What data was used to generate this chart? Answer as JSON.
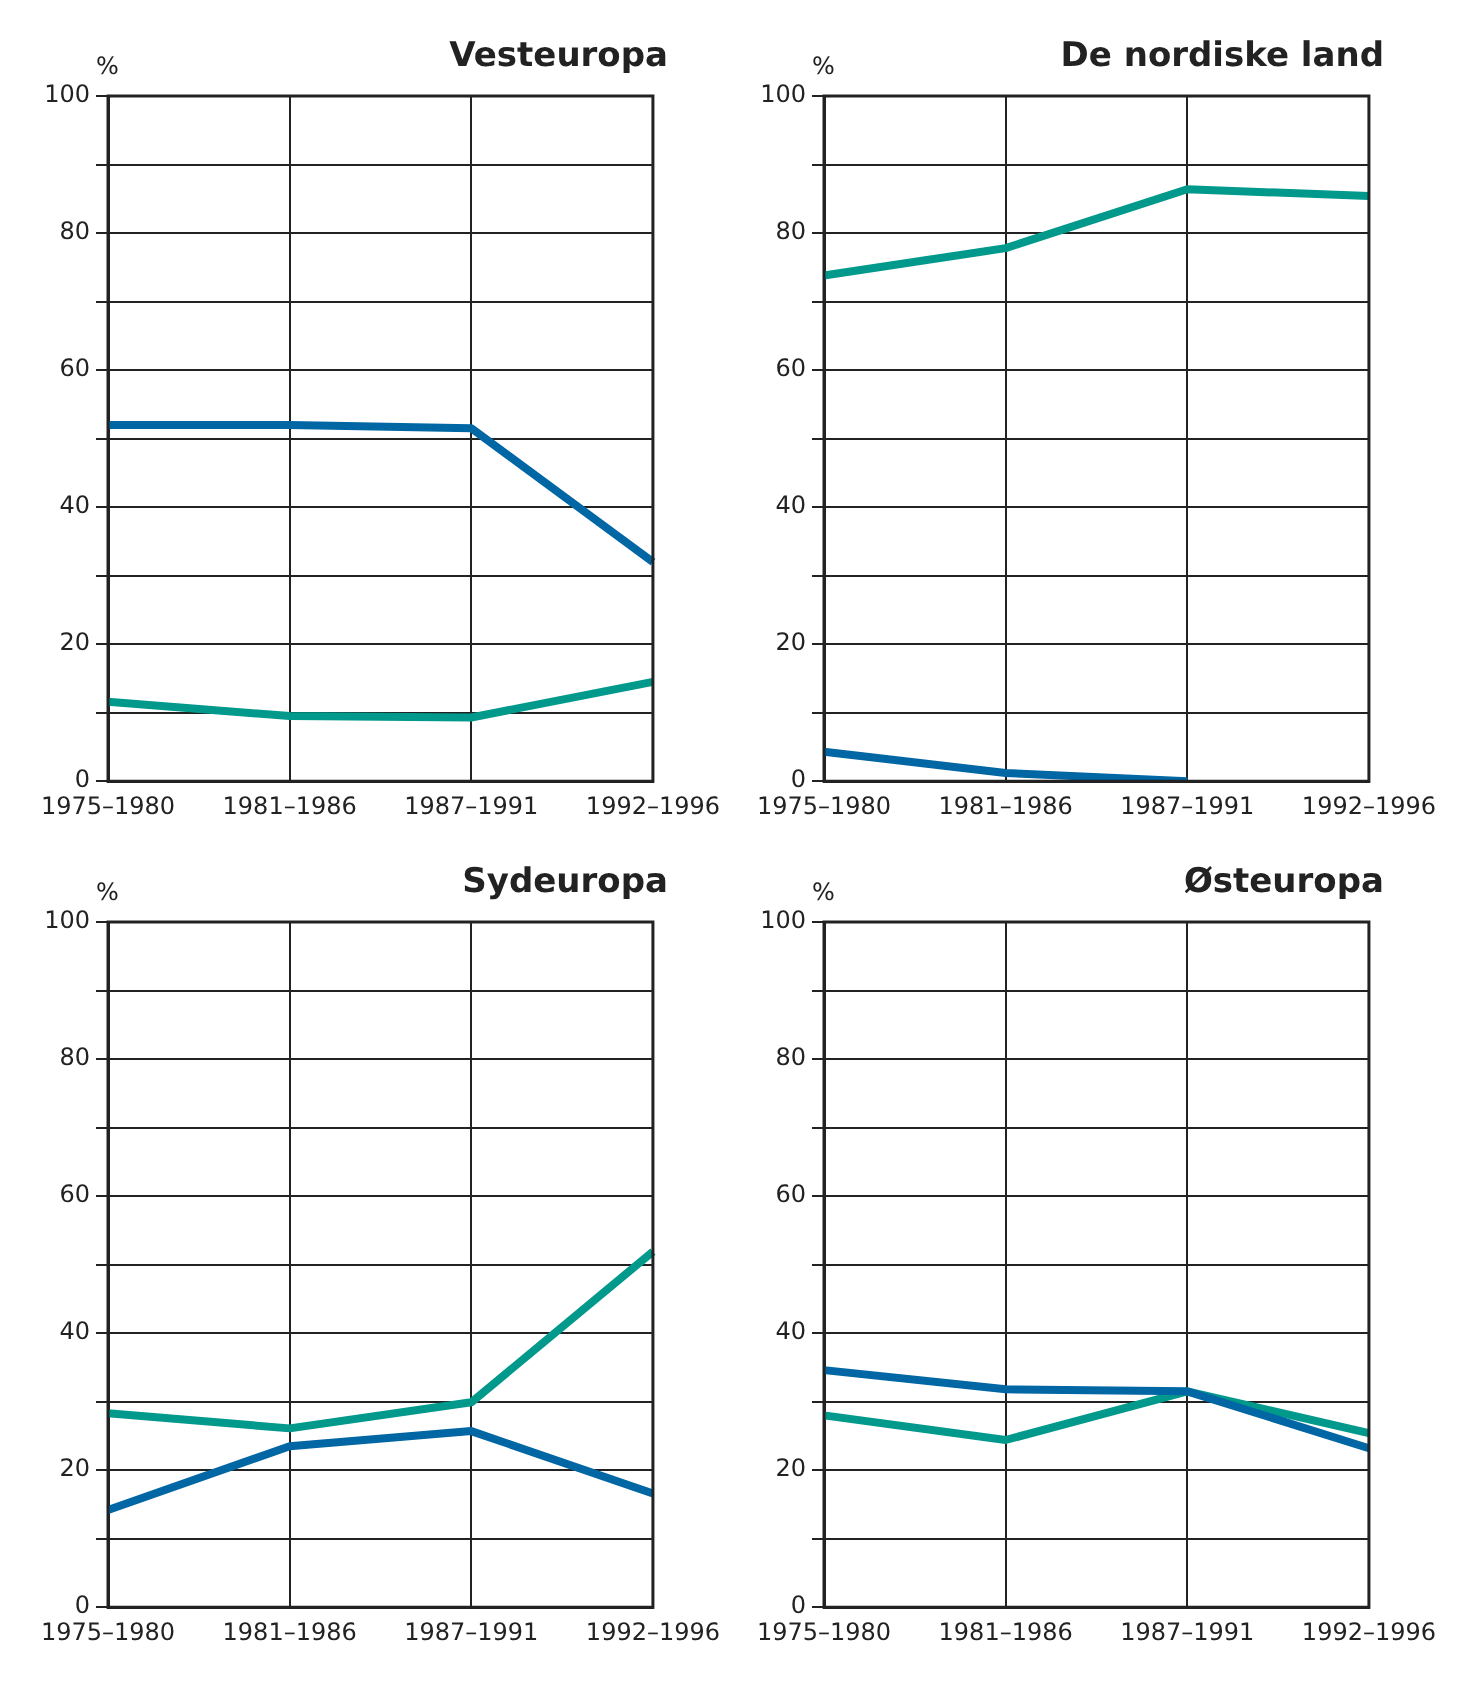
{
  "chart_data": [
    {
      "type": "line",
      "title": "Vesteuropa",
      "ylabel": "%",
      "categories": [
        "1975–1980",
        "1981–1986",
        "1987–1991",
        "1992–1996"
      ],
      "ylim": [
        0,
        100
      ],
      "yticks": [
        0,
        {
          "value": 10,
          "label": null
        },
        20,
        {
          "value": 30,
          "label": null
        },
        40,
        {
          "value": 50,
          "label": null
        },
        60,
        {
          "value": 70,
          "label": null
        },
        80,
        {
          "value": 90,
          "label": null
        },
        100
      ],
      "grid": true,
      "marker": "none",
      "series": [
        {
          "color": "#0066a4",
          "values": [
            52.0,
            52.0,
            51.5,
            32.0
          ]
        },
        {
          "color": "#00998b",
          "values": [
            11.6,
            9.5,
            9.3,
            14.5
          ]
        }
      ]
    },
    {
      "type": "line",
      "title": "De nordiske land",
      "ylabel": "%",
      "categories": [
        "1975–1980",
        "1981–1986",
        "1987–1991",
        "1992–1996"
      ],
      "ylim": [
        0,
        100
      ],
      "yticks": [
        0,
        {
          "value": 10,
          "label": null
        },
        20,
        {
          "value": 30,
          "label": null
        },
        40,
        {
          "value": 50,
          "label": null
        },
        60,
        {
          "value": 70,
          "label": null
        },
        80,
        {
          "value": 90,
          "label": null
        },
        100
      ],
      "grid": true,
      "marker": "none",
      "series": [
        {
          "color": "#0066a4",
          "values": [
            4.3,
            1.2,
            0,
            null
          ]
        },
        {
          "color": "#00998b",
          "values": [
            73.8,
            77.8,
            86.4,
            85.4
          ]
        }
      ]
    },
    {
      "type": "line",
      "title": "Sydeuropa",
      "ylabel": "%",
      "categories": [
        "1975–1980",
        "1981–1986",
        "1987–1991",
        "1992–1996"
      ],
      "ylim": [
        0,
        100
      ],
      "yticks": [
        0,
        {
          "value": 10,
          "label": null
        },
        20,
        {
          "value": 30,
          "label": null
        },
        40,
        {
          "value": 50,
          "label": null
        },
        60,
        {
          "value": 70,
          "label": null
        },
        80,
        {
          "value": 90,
          "label": null
        },
        100
      ],
      "grid": true,
      "marker": "none",
      "series": [
        {
          "color": "#0066a4",
          "values": [
            14.2,
            23.5,
            25.7,
            16.6
          ]
        },
        {
          "color": "#00998b",
          "values": [
            28.3,
            26.1,
            29.9,
            51.9
          ]
        }
      ]
    },
    {
      "type": "line",
      "title": "Østeuropa",
      "ylabel": "%",
      "categories": [
        "1975–1980",
        "1981–1986",
        "1987–1991",
        "1992–1996"
      ],
      "ylim": [
        0,
        100
      ],
      "yticks": [
        0,
        {
          "value": 10,
          "label": null
        },
        20,
        {
          "value": 30,
          "label": null
        },
        40,
        {
          "value": 50,
          "label": null
        },
        60,
        {
          "value": 70,
          "label": null
        },
        80,
        {
          "value": 90,
          "label": null
        },
        100
      ],
      "grid": true,
      "marker": "none",
      "series": [
        {
          "color": "#0066a4",
          "values": [
            34.6,
            31.8,
            31.5,
            23.2
          ]
        },
        {
          "color": "#00998b",
          "values": [
            28.0,
            24.4,
            31.5,
            25.4
          ]
        }
      ]
    }
  ]
}
